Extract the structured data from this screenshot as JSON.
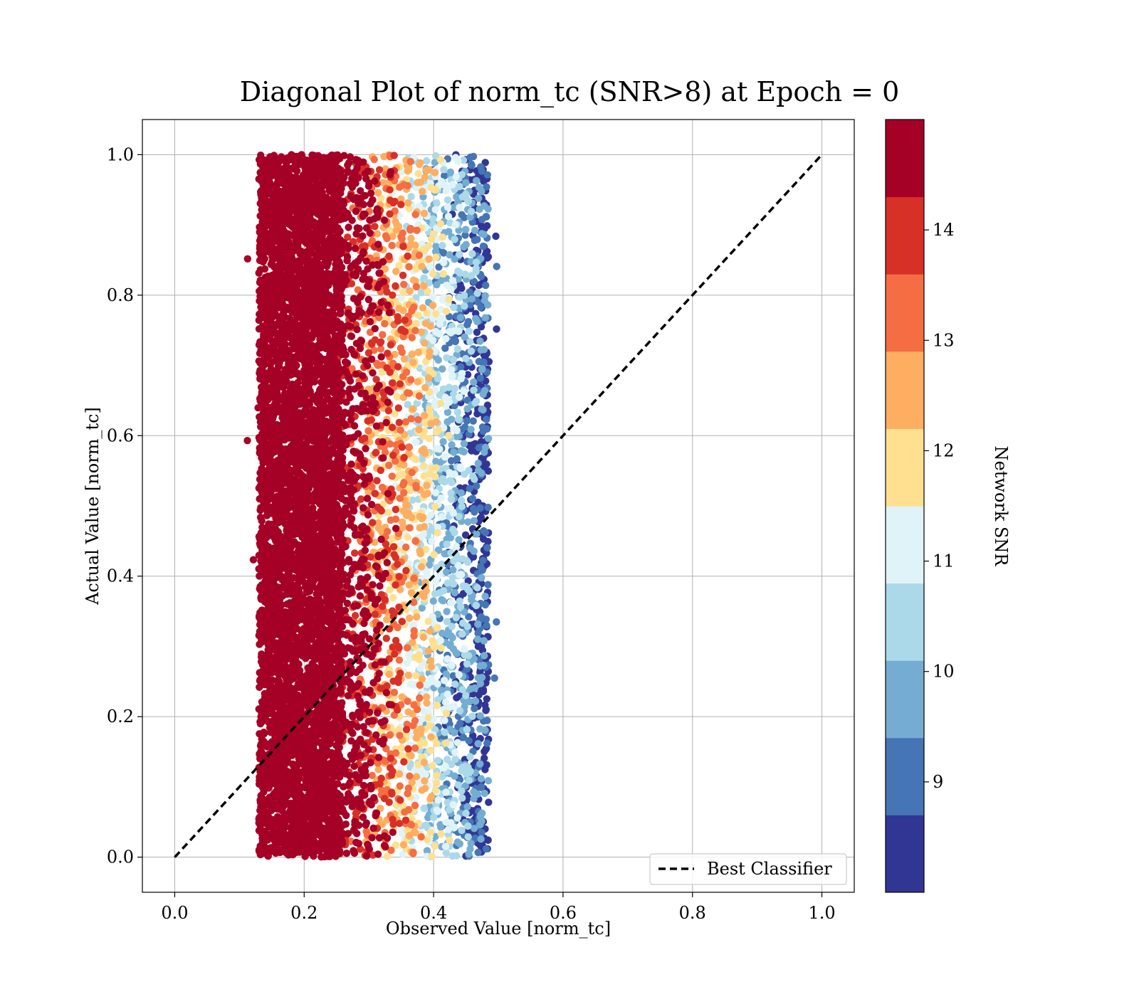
{
  "chart_data": {
    "type": "scatter",
    "title": "Diagonal Plot of norm_tc (SNR>8) at Epoch = 0",
    "xlabel": "Observed Value [norm_tc]",
    "ylabel": "Actual Value [norm_tc]",
    "xlim": [
      -0.05,
      1.05
    ],
    "ylim": [
      -0.05,
      1.05
    ],
    "xticks": [
      "0.0",
      "0.2",
      "0.4",
      "0.6",
      "0.8",
      "1.0"
    ],
    "yticks": [
      "0.0",
      "0.2",
      "0.4",
      "0.6",
      "0.8",
      "1.0"
    ],
    "grid": true,
    "legend": {
      "position": "lower-right",
      "entries": [
        {
          "label": "Best Classifier",
          "style": "dashed",
          "color": "#000000"
        }
      ]
    },
    "reference_line": {
      "name": "Best Classifier",
      "x": [
        0,
        1
      ],
      "y": [
        0,
        1
      ],
      "style": "dashed",
      "color": "#000000"
    },
    "scatter_summary": {
      "x_range": [
        0.11,
        0.5
      ],
      "y_range": [
        0.0,
        1.0
      ],
      "color_by": "Network SNR",
      "trend": "higher SNR (dark red) concentrated at low observed values ~0.12-0.25; lower SNR (blue) at observed ~0.45-0.5"
    },
    "colorbar": {
      "label": "Network SNR",
      "range": [
        8,
        15
      ],
      "ticks": [
        "9",
        "10",
        "11",
        "12",
        "13",
        "14"
      ],
      "tick_values": [
        9,
        10,
        11,
        12,
        13,
        14
      ],
      "colors": [
        "#313695",
        "#4575b4",
        "#74add1",
        "#abd9e9",
        "#e0f3f8",
        "#fee090",
        "#fdae61",
        "#f46d43",
        "#d73027",
        "#a50026"
      ]
    }
  }
}
